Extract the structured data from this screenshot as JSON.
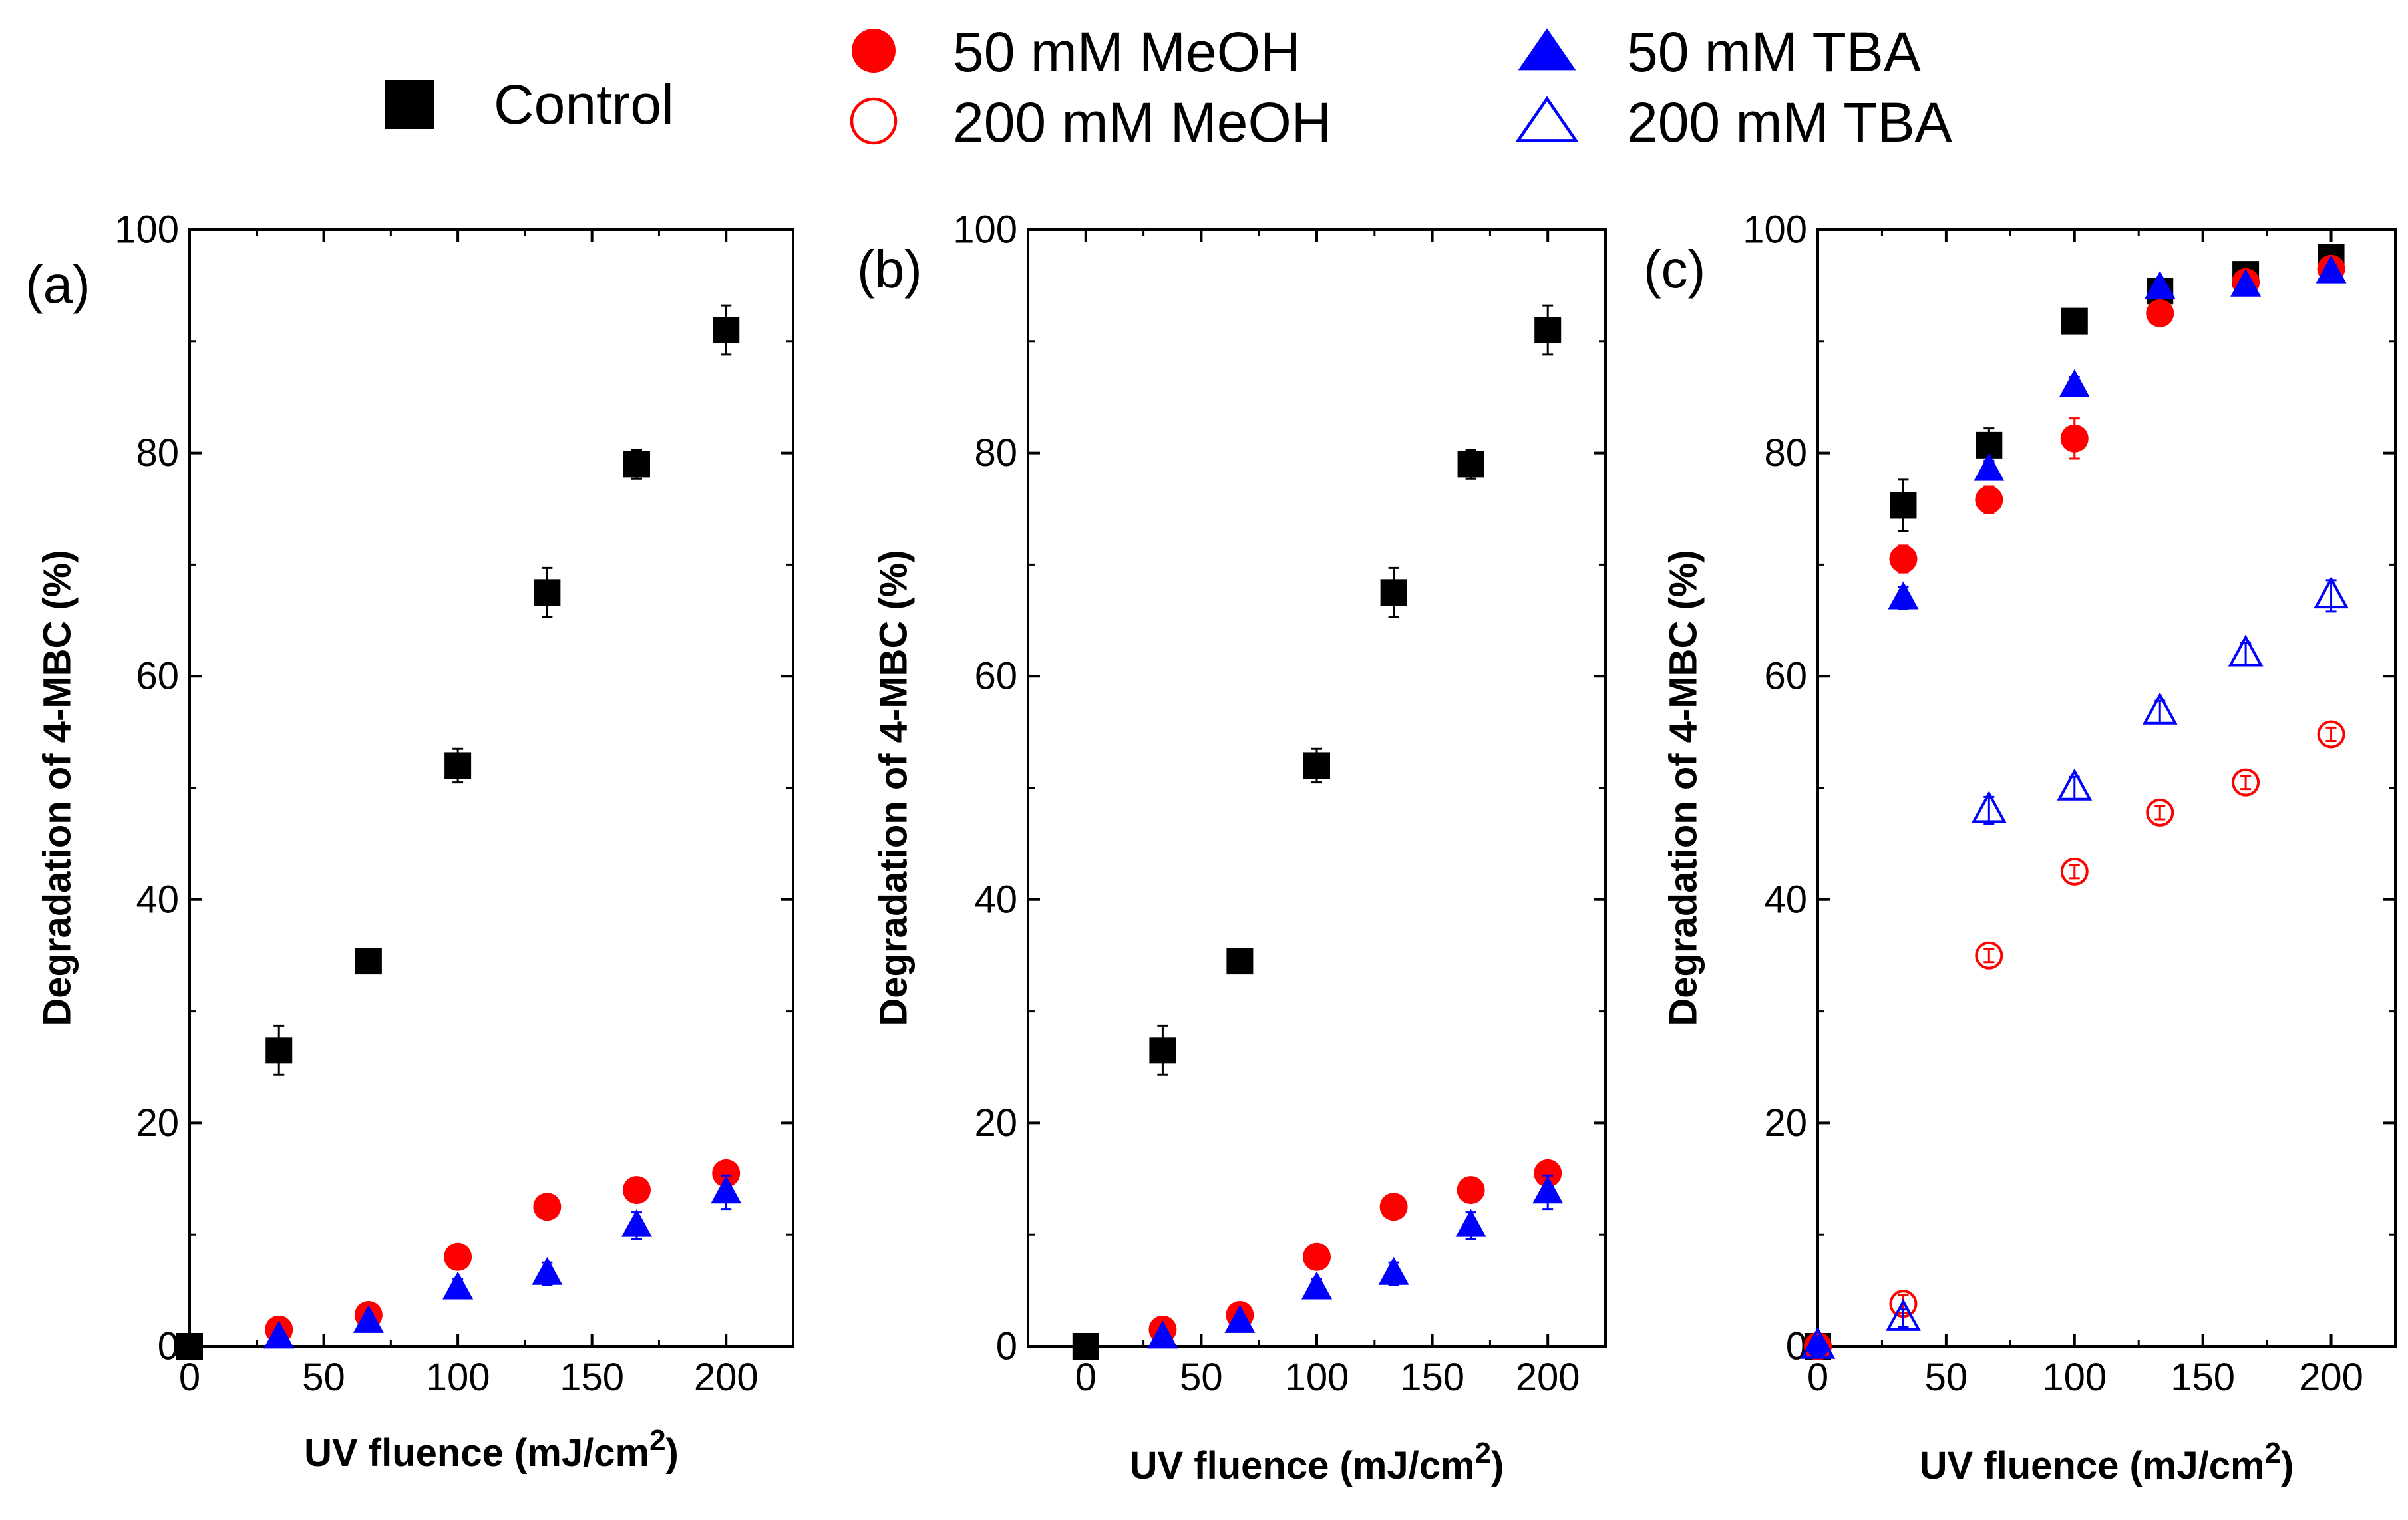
{
  "colors": {
    "control": "#000000",
    "meoh": "#ff0000",
    "tba": "#0000ff"
  },
  "legend": [
    {
      "key": "control",
      "label": "Control",
      "marker": "square-filled-icon"
    },
    {
      "key": "meoh50",
      "label": "50 mM MeOH",
      "marker": "circle-filled-icon"
    },
    {
      "key": "meoh200",
      "label": "200 mM MeOH",
      "marker": "circle-open-icon"
    },
    {
      "key": "tba50",
      "label": "50 mM TBA",
      "marker": "triangle-filled-icon"
    },
    {
      "key": "tba200",
      "label": "200 mM TBA",
      "marker": "triangle-open-icon"
    }
  ],
  "chart_data": [
    {
      "type": "scatter",
      "panel_label": "(a)",
      "xlabel": "UV fluence (mJ/cm",
      "xlabel_sup": "2",
      "xlabel_suffix": ")",
      "ylabel": "Degradation of 4-MBC (%)",
      "xlim": [
        0,
        225
      ],
      "ylim": [
        0,
        100
      ],
      "xticks": [
        0,
        50,
        100,
        150,
        200
      ],
      "yticks": [
        0,
        20,
        40,
        60,
        80,
        100
      ],
      "series": [
        {
          "name": "Control",
          "marker": "square",
          "color": "#000000",
          "filled": true,
          "x": [
            0,
            33.3,
            66.7,
            100,
            133.3,
            166.7,
            200
          ],
          "y": [
            0,
            26.5,
            34.5,
            52.0,
            67.5,
            79.0,
            91.0
          ],
          "err": [
            0,
            2.2,
            1.0,
            1.5,
            2.2,
            1.3,
            2.2
          ]
        },
        {
          "name": "50 mM MeOH",
          "marker": "circle",
          "color": "#ff0000",
          "filled": true,
          "x": [
            33.3,
            66.7,
            100,
            133.3,
            166.7,
            200
          ],
          "y": [
            1.5,
            2.8,
            8.0,
            12.5,
            14.0,
            15.5
          ],
          "err": [
            0.4,
            0.5,
            0.5,
            0.5,
            0.5,
            0.5
          ]
        },
        {
          "name": "50 mM TBA",
          "marker": "triangle",
          "color": "#0000ff",
          "filled": true,
          "x": [
            33.3,
            66.7,
            100,
            133.3,
            166.7,
            200
          ],
          "y": [
            0.8,
            2.2,
            5.2,
            6.5,
            10.8,
            13.8
          ],
          "err": [
            0.4,
            0.6,
            0.8,
            1.0,
            1.2,
            1.5
          ]
        }
      ]
    },
    {
      "type": "scatter",
      "panel_label": "(b)",
      "xlabel": "UV fluence (mJ/cm",
      "xlabel_sup": "2",
      "xlabel_suffix": ")",
      "ylabel": "Degradation of 4-MBC (%)",
      "xlim": [
        -25,
        225
      ],
      "ylim": [
        0,
        100
      ],
      "xticks": [
        0,
        50,
        100,
        150,
        200
      ],
      "yticks": [
        0,
        20,
        40,
        60,
        80,
        100
      ],
      "series": [
        {
          "name": "Control",
          "marker": "square",
          "color": "#000000",
          "filled": true,
          "x": [
            0,
            33.3,
            66.7,
            100,
            133.3,
            166.7,
            200
          ],
          "y": [
            0,
            26.5,
            34.5,
            52.0,
            67.5,
            79.0,
            91.0
          ],
          "err": [
            0,
            2.2,
            1.0,
            1.5,
            2.2,
            1.3,
            2.2
          ]
        },
        {
          "name": "50 mM MeOH",
          "marker": "circle",
          "color": "#ff0000",
          "filled": true,
          "x": [
            33.3,
            66.7,
            100,
            133.3,
            166.7,
            200
          ],
          "y": [
            1.5,
            2.8,
            8.0,
            12.5,
            14.0,
            15.5
          ],
          "err": [
            0.4,
            0.5,
            0.5,
            0.5,
            0.5,
            0.5
          ]
        },
        {
          "name": "50 mM TBA",
          "marker": "triangle",
          "color": "#0000ff",
          "filled": true,
          "x": [
            33.3,
            66.7,
            100,
            133.3,
            166.7,
            200
          ],
          "y": [
            0.8,
            2.2,
            5.2,
            6.5,
            10.8,
            13.8
          ],
          "err": [
            0.4,
            0.6,
            0.8,
            1.0,
            1.2,
            1.5
          ]
        }
      ]
    },
    {
      "type": "scatter",
      "panel_label": "(c)",
      "xlabel": "UV fluence (mJ/cm",
      "xlabel_sup": "2",
      "xlabel_suffix": ")",
      "ylabel": "Degradation of 4-MBC (%)",
      "xlim": [
        0,
        225
      ],
      "ylim": [
        0,
        100
      ],
      "xticks": [
        0,
        50,
        100,
        150,
        200
      ],
      "yticks": [
        0,
        20,
        40,
        60,
        80,
        100
      ],
      "series": [
        {
          "name": "Control",
          "marker": "square",
          "color": "#000000",
          "filled": true,
          "x": [
            0,
            33.3,
            66.7,
            100,
            133.3,
            166.7,
            200
          ],
          "y": [
            0,
            75.3,
            80.7,
            91.8,
            94.5,
            96.0,
            97.5
          ],
          "err": [
            0,
            2.3,
            1.5,
            0.8,
            0.5,
            0.5,
            0.5
          ]
        },
        {
          "name": "50 mM MeOH",
          "marker": "circle",
          "color": "#ff0000",
          "filled": true,
          "x": [
            0,
            33.3,
            66.7,
            100,
            133.3,
            166.7,
            200
          ],
          "y": [
            0,
            70.5,
            75.8,
            81.3,
            92.5,
            95.3,
            96.5
          ],
          "err": [
            0,
            1.2,
            1.2,
            1.8,
            0.5,
            0.5,
            0.5
          ]
        },
        {
          "name": "50 mM TBA",
          "marker": "triangle",
          "color": "#0000ff",
          "filled": true,
          "x": [
            0,
            33.3,
            66.7,
            100,
            133.3,
            166.7,
            200
          ],
          "y": [
            0,
            67.0,
            78.5,
            86.0,
            94.8,
            95.0,
            96.2
          ],
          "err": [
            0,
            1.0,
            0.8,
            0.8,
            0.5,
            0.5,
            0.6
          ]
        },
        {
          "name": "200 mM MeOH",
          "marker": "circle",
          "color": "#ff0000",
          "filled": false,
          "x": [
            0,
            33.3,
            66.7,
            100,
            133.3,
            166.7,
            200
          ],
          "y": [
            0,
            3.8,
            35.0,
            42.5,
            47.8,
            50.5,
            54.8
          ],
          "err": [
            0,
            0.8,
            0.6,
            0.6,
            0.6,
            0.6,
            0.6
          ]
        },
        {
          "name": "200 mM TBA",
          "marker": "triangle",
          "color": "#0000ff",
          "filled": false,
          "x": [
            0,
            33.3,
            66.7,
            100,
            133.3,
            166.7,
            200
          ],
          "y": [
            0,
            2.5,
            48.0,
            50.0,
            56.8,
            62.0,
            67.2
          ],
          "err": [
            0,
            0.8,
            1.2,
            1.0,
            1.0,
            1.0,
            1.4
          ]
        }
      ]
    }
  ]
}
